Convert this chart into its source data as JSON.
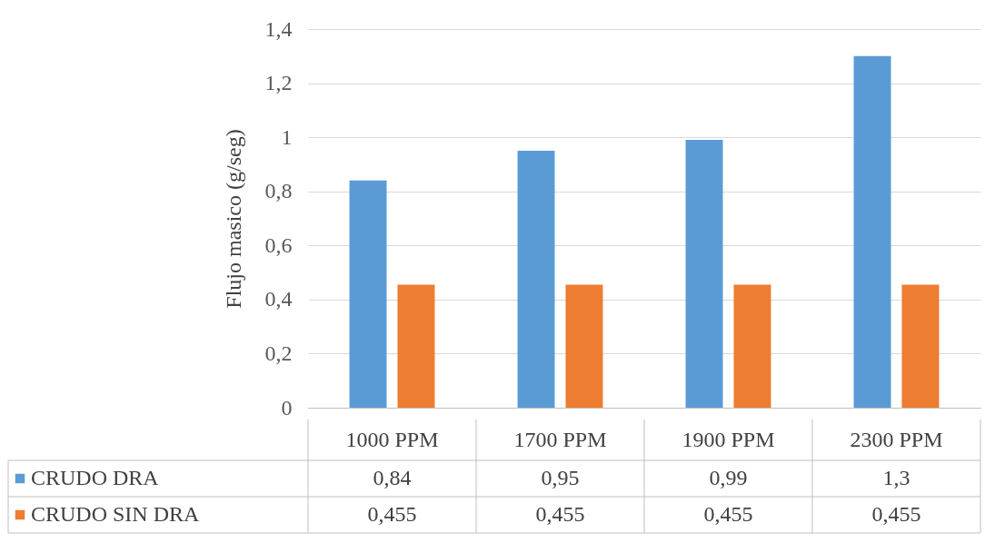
{
  "chart_data": {
    "type": "bar",
    "ylabel": "Flujo masico (g/seg)",
    "categories": [
      "1000 PPM",
      "1700 PPM",
      "1900 PPM",
      "2300 PPM"
    ],
    "series": [
      {
        "name": "CRUDO DRA",
        "color": "#5b9bd5",
        "values": [
          0.84,
          0.95,
          0.99,
          1.3
        ],
        "value_labels": [
          "0,84",
          "0,95",
          "0,99",
          "1,3"
        ]
      },
      {
        "name": "CRUDO SIN DRA",
        "color": "#ed7d31",
        "values": [
          0.455,
          0.455,
          0.455,
          0.455
        ],
        "value_labels": [
          "0,455",
          "0,455",
          "0,455",
          "0,455"
        ]
      }
    ],
    "ylim": [
      0,
      1.4
    ],
    "yticks": [
      0,
      {
        "value": 0.2,
        "label": "0,2"
      },
      {
        "value": 0.4,
        "label": "0,4"
      },
      {
        "value": 0.6,
        "label": "0,6"
      },
      {
        "value": 0.8,
        "label": "0,8"
      },
      1,
      {
        "value": 1.2,
        "label": "1,2"
      },
      {
        "value": 1.4,
        "label": "1,4"
      }
    ],
    "grid": true,
    "legend": "bottom left"
  }
}
